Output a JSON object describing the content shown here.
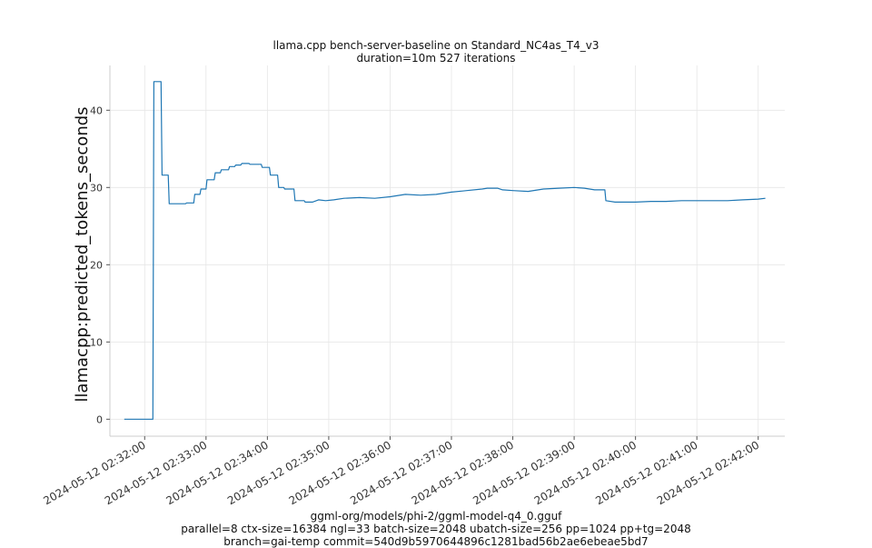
{
  "chart_data": {
    "type": "line",
    "title": "llama.cpp bench-server-baseline on Standard_NC4as_T4_v3",
    "subtitle": "duration=10m 527 iterations",
    "xlabel": "",
    "ylabel": "llamacpp:predicted_tokens_seconds",
    "footer": [
      "ggml-org/models/phi-2/ggml-model-q4_0.gguf",
      "parallel=8 ctx-size=16384 ngl=33 batch-size=2048 ubatch-size=256 pp=1024 pp+tg=2048",
      "branch=gai-temp commit=540d9b5970644896c1281bad56b2ae6ebeae5bd7"
    ],
    "x_tick_labels": [
      "2024-05-12 02:32:00",
      "2024-05-12 02:33:00",
      "2024-05-12 02:34:00",
      "2024-05-12 02:35:00",
      "2024-05-12 02:36:00",
      "2024-05-12 02:37:00",
      "2024-05-12 02:38:00",
      "2024-05-12 02:39:00",
      "2024-05-12 02:40:00",
      "2024-05-12 02:41:00",
      "2024-05-12 02:42:00"
    ],
    "y_ticks": [
      0,
      10,
      20,
      30,
      40
    ],
    "xlim": [
      "2024-05-12 02:31:26",
      "2024-05-12 02:42:26"
    ],
    "ylim": [
      -2.2,
      45.8
    ],
    "grid": true,
    "line_color": "#1f77b4",
    "series": [
      {
        "x": [
          "2024-05-12 02:31:40",
          "2024-05-12 02:32:08",
          "2024-05-12 02:32:09",
          "2024-05-12 02:32:16",
          "2024-05-12 02:32:17",
          "2024-05-12 02:32:23",
          "2024-05-12 02:32:24",
          "2024-05-12 02:32:40",
          "2024-05-12 02:32:41",
          "2024-05-12 02:32:48",
          "2024-05-12 02:32:49",
          "2024-05-12 02:32:54",
          "2024-05-12 02:32:55",
          "2024-05-12 02:33:00",
          "2024-05-12 02:33:01",
          "2024-05-12 02:33:08",
          "2024-05-12 02:33:09",
          "2024-05-12 02:33:14",
          "2024-05-12 02:33:15",
          "2024-05-12 02:33:22",
          "2024-05-12 02:33:23",
          "2024-05-12 02:33:28",
          "2024-05-12 02:33:29",
          "2024-05-12 02:33:34",
          "2024-05-12 02:33:35",
          "2024-05-12 02:33:42",
          "2024-05-12 02:33:43",
          "2024-05-12 02:33:54",
          "2024-05-12 02:33:55",
          "2024-05-12 02:34:02",
          "2024-05-12 02:34:03",
          "2024-05-12 02:34:10",
          "2024-05-12 02:34:11",
          "2024-05-12 02:34:16",
          "2024-05-12 02:34:17",
          "2024-05-12 02:34:26",
          "2024-05-12 02:34:27",
          "2024-05-12 02:34:36",
          "2024-05-12 02:34:37",
          "2024-05-12 02:34:44",
          "2024-05-12 02:34:50",
          "2024-05-12 02:34:57",
          "2024-05-12 02:35:05",
          "2024-05-12 02:35:15",
          "2024-05-12 02:35:30",
          "2024-05-12 02:35:45",
          "2024-05-12 02:36:00",
          "2024-05-12 02:36:15",
          "2024-05-12 02:36:30",
          "2024-05-12 02:36:45",
          "2024-05-12 02:37:00",
          "2024-05-12 02:37:15",
          "2024-05-12 02:37:30",
          "2024-05-12 02:37:35",
          "2024-05-12 02:37:45",
          "2024-05-12 02:37:50",
          "2024-05-12 02:38:00",
          "2024-05-12 02:38:15",
          "2024-05-12 02:38:30",
          "2024-05-12 02:38:45",
          "2024-05-12 02:39:00",
          "2024-05-12 02:39:10",
          "2024-05-12 02:39:20",
          "2024-05-12 02:39:30",
          "2024-05-12 02:39:31",
          "2024-05-12 02:39:40",
          "2024-05-12 02:40:00",
          "2024-05-12 02:40:15",
          "2024-05-12 02:40:30",
          "2024-05-12 02:40:45",
          "2024-05-12 02:41:00",
          "2024-05-12 02:41:15",
          "2024-05-12 02:41:30",
          "2024-05-12 02:41:45",
          "2024-05-12 02:42:00",
          "2024-05-12 02:42:07"
        ],
        "values": [
          0,
          0,
          43.7,
          43.7,
          31.6,
          31.6,
          27.9,
          27.9,
          28.0,
          28.0,
          29.1,
          29.1,
          29.8,
          29.8,
          31.0,
          31.0,
          31.9,
          31.9,
          32.3,
          32.3,
          32.7,
          32.7,
          32.9,
          32.9,
          33.1,
          33.1,
          33.0,
          33.0,
          32.6,
          32.6,
          31.6,
          31.6,
          30.0,
          30.0,
          29.8,
          29.8,
          28.3,
          28.3,
          28.1,
          28.1,
          28.4,
          28.3,
          28.4,
          28.6,
          28.7,
          28.6,
          28.8,
          29.1,
          29.0,
          29.1,
          29.4,
          29.6,
          29.8,
          29.9,
          29.9,
          29.7,
          29.6,
          29.5,
          29.8,
          29.9,
          30.0,
          29.9,
          29.7,
          29.7,
          28.3,
          28.1,
          28.1,
          28.2,
          28.2,
          28.3,
          28.3,
          28.3,
          28.3,
          28.4,
          28.5,
          28.6
        ]
      }
    ]
  }
}
